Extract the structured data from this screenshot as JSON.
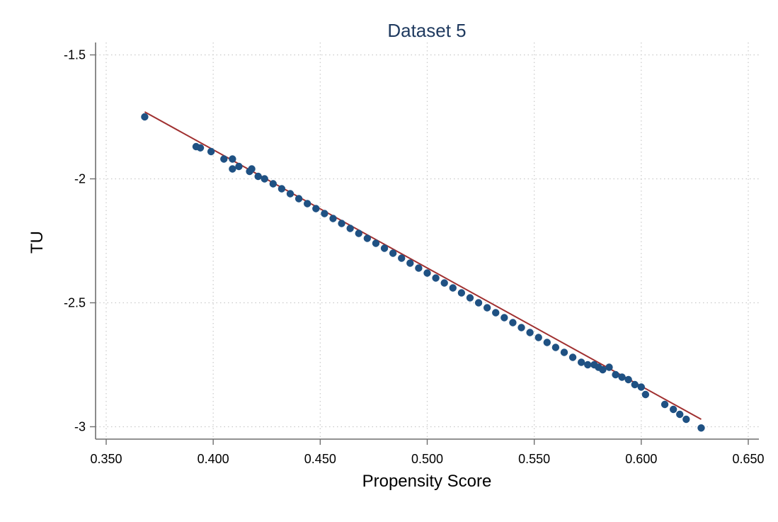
{
  "chart_data": {
    "type": "scatter",
    "title": "Dataset 5",
    "xlabel": "Propensity Score",
    "ylabel": "TU",
    "xlim": [
      0.35,
      0.65
    ],
    "ylim": [
      -3.05,
      -1.45
    ],
    "x_ticks": [
      0.35,
      0.4,
      0.45,
      0.5,
      0.55,
      0.6,
      0.65
    ],
    "x_tick_labels": [
      "0.350",
      "0.400",
      "0.450",
      "0.500",
      "0.550",
      "0.600",
      "0.650"
    ],
    "y_ticks": [
      -1.5,
      -2,
      -2.5,
      -3
    ],
    "y_tick_labels": [
      "-1.5",
      "-2",
      "-2.5",
      "-3"
    ],
    "grid": true,
    "legend": "none",
    "colors": {
      "title": "#1f3a5f",
      "points": "#1f5183",
      "fit_line": "#a03030"
    },
    "series": [
      {
        "type": "scatter",
        "x": [
          0.368,
          0.392,
          0.394,
          0.399,
          0.405,
          0.409,
          0.409,
          0.412,
          0.417,
          0.418,
          0.421,
          0.424,
          0.428,
          0.432,
          0.436,
          0.44,
          0.444,
          0.448,
          0.452,
          0.456,
          0.46,
          0.464,
          0.468,
          0.472,
          0.476,
          0.48,
          0.484,
          0.488,
          0.492,
          0.496,
          0.5,
          0.504,
          0.508,
          0.512,
          0.516,
          0.52,
          0.524,
          0.528,
          0.532,
          0.536,
          0.54,
          0.544,
          0.548,
          0.552,
          0.556,
          0.56,
          0.564,
          0.568,
          0.572,
          0.575,
          0.578,
          0.58,
          0.582,
          0.585,
          0.588,
          0.591,
          0.594,
          0.597,
          0.6,
          0.602,
          0.611,
          0.615,
          0.618,
          0.621,
          0.628
        ],
        "y": [
          -1.75,
          -1.87,
          -1.875,
          -1.89,
          -1.92,
          -1.92,
          -1.96,
          -1.95,
          -1.97,
          -1.96,
          -1.99,
          -2.0,
          -2.02,
          -2.04,
          -2.06,
          -2.08,
          -2.1,
          -2.12,
          -2.14,
          -2.16,
          -2.18,
          -2.2,
          -2.22,
          -2.24,
          -2.26,
          -2.28,
          -2.3,
          -2.32,
          -2.34,
          -2.36,
          -2.38,
          -2.4,
          -2.42,
          -2.44,
          -2.46,
          -2.48,
          -2.5,
          -2.52,
          -2.54,
          -2.56,
          -2.58,
          -2.6,
          -2.62,
          -2.64,
          -2.66,
          -2.68,
          -2.7,
          -2.72,
          -2.74,
          -2.75,
          -2.75,
          -2.76,
          -2.77,
          -2.76,
          -2.79,
          -2.8,
          -2.81,
          -2.83,
          -2.84,
          -2.87,
          -2.91,
          -2.93,
          -2.95,
          -2.97,
          -3.005
        ]
      },
      {
        "type": "line",
        "x": [
          0.368,
          0.628
        ],
        "y": [
          -1.73,
          -2.97
        ]
      }
    ]
  }
}
